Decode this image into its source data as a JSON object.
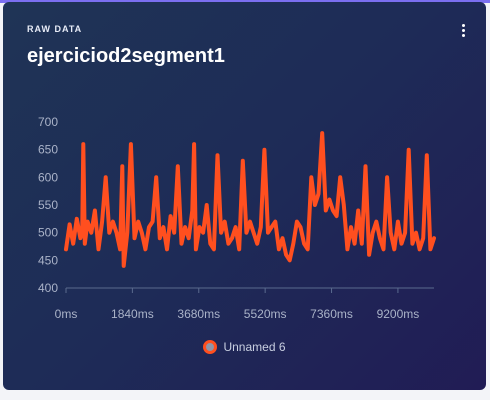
{
  "header": {
    "eyebrow": "RAW DATA",
    "title": "ejerciciod2segment1"
  },
  "menu_icon": "kebab-menu-icon",
  "colors": {
    "series": "#ff4f1f",
    "legend_fill": "#8f95a8",
    "axis_text": "#aab3c8"
  },
  "chart_data": {
    "type": "line",
    "x_unit": "ms",
    "xlim": [
      0,
      10200
    ],
    "ylim": [
      400,
      700
    ],
    "y_ticks": [
      "400",
      "450",
      "500",
      "550",
      "600",
      "650",
      "700"
    ],
    "x_ticks": [
      "0ms",
      "1840ms",
      "3680ms",
      "5520ms",
      "7360ms",
      "9200ms"
    ],
    "x_tick_values": [
      0,
      1840,
      3680,
      5520,
      7360,
      9200
    ],
    "y_tick_values": [
      400,
      450,
      500,
      550,
      600,
      650,
      700
    ],
    "grid": false,
    "legend_position": "bottom",
    "series": [
      {
        "name": "Unnamed 6",
        "x": [
          0,
          100,
          200,
          300,
          400,
          450,
          480,
          520,
          600,
          700,
          800,
          900,
          1000,
          1100,
          1200,
          1300,
          1400,
          1500,
          1560,
          1600,
          1650,
          1700,
          1800,
          1900,
          2000,
          2100,
          2200,
          2300,
          2400,
          2500,
          2600,
          2700,
          2800,
          2900,
          3000,
          3100,
          3200,
          3300,
          3400,
          3500,
          3550,
          3600,
          3700,
          3800,
          3900,
          4000,
          4100,
          4200,
          4300,
          4400,
          4500,
          4600,
          4700,
          4800,
          4900,
          5000,
          5100,
          5200,
          5300,
          5400,
          5500,
          5600,
          5700,
          5800,
          5900,
          6000,
          6100,
          6200,
          6300,
          6400,
          6500,
          6600,
          6700,
          6800,
          6900,
          7000,
          7100,
          7200,
          7300,
          7400,
          7500,
          7600,
          7700,
          7800,
          7900,
          8000,
          8100,
          8200,
          8300,
          8400,
          8500,
          8600,
          8700,
          8800,
          8900,
          9000,
          9100,
          9200,
          9300,
          9400,
          9500,
          9600,
          9700,
          9800,
          9900,
          10000,
          10100,
          10200
        ],
        "values": [
          470,
          515,
          480,
          525,
          490,
          500,
          660,
          480,
          520,
          500,
          540,
          470,
          520,
          600,
          500,
          520,
          500,
          470,
          620,
          440,
          470,
          500,
          660,
          490,
          520,
          500,
          470,
          510,
          520,
          600,
          490,
          510,
          470,
          530,
          500,
          620,
          480,
          510,
          490,
          540,
          660,
          470,
          510,
          500,
          550,
          480,
          470,
          640,
          500,
          520,
          480,
          490,
          510,
          470,
          630,
          500,
          520,
          500,
          480,
          510,
          650,
          500,
          510,
          520,
          470,
          490,
          460,
          450,
          480,
          520,
          510,
          480,
          470,
          600,
          550,
          570,
          680,
          540,
          560,
          540,
          530,
          600,
          550,
          470,
          510,
          480,
          540,
          480,
          620,
          460,
          500,
          520,
          490,
          470,
          600,
          500,
          470,
          520,
          480,
          500,
          650,
          480,
          500,
          470,
          490,
          640,
          470,
          490
        ]
      }
    ]
  }
}
